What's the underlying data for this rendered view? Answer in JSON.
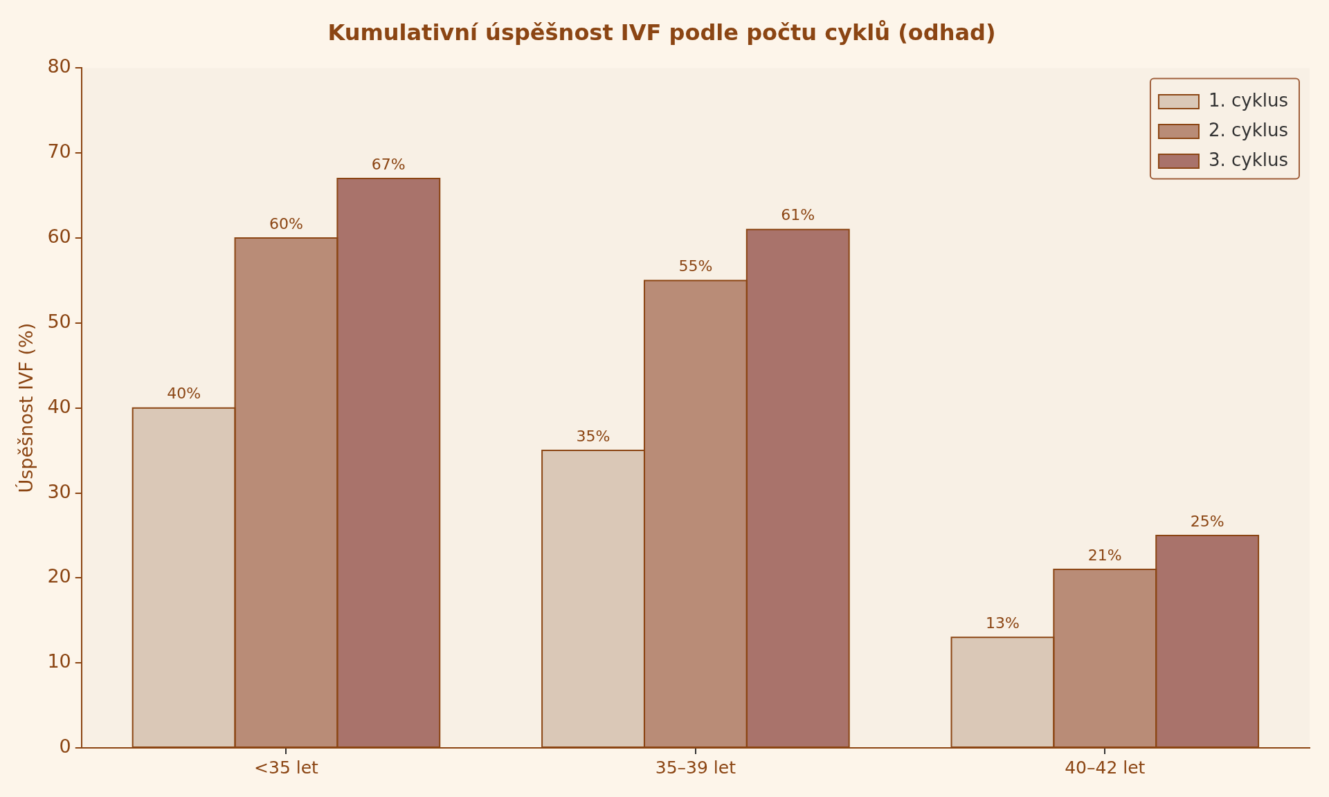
{
  "chart_data": {
    "type": "bar",
    "title": "Kumulativní úspěšnost IVF podle počtu cyklů (odhad)",
    "ylabel": "Úspěšnost IVF (%)",
    "categories": [
      "<35 let",
      "35–39 let",
      "40–42 let"
    ],
    "series": [
      {
        "name": "1. cyklus",
        "color": "#dac8b7",
        "values": [
          40,
          35,
          13
        ],
        "value_labels": [
          "40%",
          "35%",
          "13%"
        ]
      },
      {
        "name": "2. cyklus",
        "color": "#b98c77",
        "values": [
          60,
          55,
          21
        ],
        "value_labels": [
          "60%",
          "55%",
          "21%"
        ]
      },
      {
        "name": "3. cyklus",
        "color": "#a9736b",
        "values": [
          67,
          61,
          25
        ],
        "value_labels": [
          "67%",
          "61%",
          "25%"
        ]
      }
    ],
    "ylim": [
      0,
      80
    ],
    "yticks": [
      0,
      10,
      20,
      30,
      40,
      50,
      60,
      70,
      80
    ],
    "grid": false,
    "legend": "top right"
  }
}
